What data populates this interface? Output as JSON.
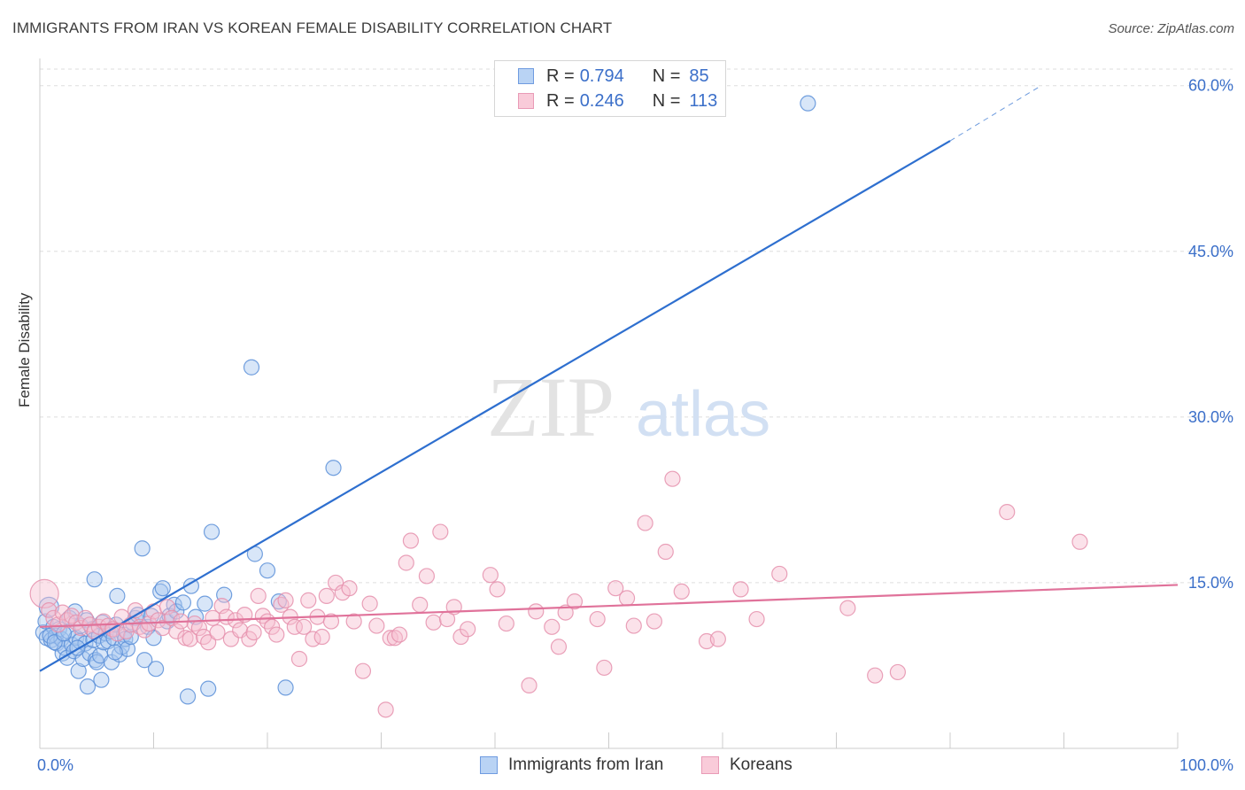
{
  "title": "IMMIGRANTS FROM IRAN VS KOREAN FEMALE DISABILITY CORRELATION CHART",
  "source": "Source: ZipAtlas.com",
  "watermark": {
    "zip": "ZIP",
    "atlas": "atlas"
  },
  "legend": {
    "series1": {
      "r_label": "R =",
      "r_value": "0.794",
      "n_label": "N =",
      "n_value": "85"
    },
    "series2": {
      "r_label": "R =",
      "r_value": "0.246",
      "n_label": "N =",
      "n_value": "113"
    }
  },
  "colors": {
    "iran_fill": "#a9c8f0",
    "iran_stroke": "#5a8fd8",
    "iran_line": "#2e6fcf",
    "korean_fill": "#f7bfd0",
    "korean_stroke": "#e590ad",
    "korean_line": "#e0729a",
    "axis_label": "#3b6fc9",
    "grid": "#dddddd"
  },
  "chart_data": {
    "type": "scatter",
    "title": "IMMIGRANTS FROM IRAN VS KOREAN FEMALE DISABILITY CORRELATION CHART",
    "xlabel": "",
    "ylabel": "Female Disability",
    "xlim": [
      0,
      100
    ],
    "ylim": [
      0,
      61.5
    ],
    "x_tick_labels": [
      "0.0%",
      "100.0%"
    ],
    "y_ticks": [
      15,
      30,
      45,
      60
    ],
    "y_tick_labels": [
      "15.0%",
      "30.0%",
      "45.0%",
      "60.0%"
    ],
    "legend_entries": [
      "Immigrants from Iran",
      "Koreans"
    ],
    "series": [
      {
        "name": "Immigrants from Iran",
        "r": 0.794,
        "n": 85,
        "trend": {
          "x0": 0,
          "y0": 7.0,
          "x1": 80,
          "y1": 55.0,
          "dash_to_x": 88,
          "dash_to_y": 60
        },
        "points": [
          [
            0.3,
            10.5
          ],
          [
            0.5,
            11.5
          ],
          [
            0.6,
            10.0
          ],
          [
            0.8,
            12.8
          ],
          [
            1.0,
            9.8
          ],
          [
            1.2,
            11.0
          ],
          [
            1.4,
            10.2
          ],
          [
            1.5,
            9.5
          ],
          [
            1.7,
            10.8
          ],
          [
            1.9,
            9.9
          ],
          [
            2.0,
            8.6
          ],
          [
            2.2,
            9.1
          ],
          [
            2.4,
            8.2
          ],
          [
            2.5,
            10.6
          ],
          [
            2.6,
            11.8
          ],
          [
            2.8,
            9.4
          ],
          [
            3.0,
            8.8
          ],
          [
            3.1,
            12.4
          ],
          [
            3.2,
            10.0
          ],
          [
            3.4,
            7.0
          ],
          [
            3.5,
            9.7
          ],
          [
            3.6,
            11.1
          ],
          [
            3.8,
            8.1
          ],
          [
            4.0,
            9.5
          ],
          [
            4.1,
            11.6
          ],
          [
            4.2,
            5.6
          ],
          [
            4.4,
            8.6
          ],
          [
            4.6,
            10.8
          ],
          [
            4.7,
            9.8
          ],
          [
            4.8,
            15.3
          ],
          [
            4.9,
            8.0
          ],
          [
            5.0,
            7.8
          ],
          [
            5.2,
            10.2
          ],
          [
            5.3,
            8.4
          ],
          [
            5.4,
            6.2
          ],
          [
            5.5,
            11.4
          ],
          [
            5.6,
            9.6
          ],
          [
            5.8,
            10.4
          ],
          [
            6.0,
            9.7
          ],
          [
            6.2,
            10.6
          ],
          [
            6.3,
            7.8
          ],
          [
            6.5,
            10.0
          ],
          [
            6.7,
            11.2
          ],
          [
            6.8,
            13.8
          ],
          [
            7.0,
            8.5
          ],
          [
            7.2,
            9.2
          ],
          [
            7.4,
            10.3
          ],
          [
            7.5,
            9.9
          ],
          [
            7.7,
            9.0
          ],
          [
            8.0,
            10.1
          ],
          [
            8.2,
            11.3
          ],
          [
            8.4,
            11.8
          ],
          [
            8.6,
            12.1
          ],
          [
            9.0,
            18.1
          ],
          [
            9.2,
            8.0
          ],
          [
            9.5,
            11.0
          ],
          [
            9.8,
            12.0
          ],
          [
            10.0,
            10.0
          ],
          [
            10.2,
            7.2
          ],
          [
            10.6,
            14.2
          ],
          [
            10.8,
            14.5
          ],
          [
            11.2,
            11.5
          ],
          [
            11.4,
            12.0
          ],
          [
            11.8,
            13.0
          ],
          [
            12.0,
            12.4
          ],
          [
            12.6,
            13.2
          ],
          [
            13.0,
            4.7
          ],
          [
            13.3,
            14.7
          ],
          [
            13.7,
            11.9
          ],
          [
            14.5,
            13.1
          ],
          [
            14.8,
            5.4
          ],
          [
            15.1,
            19.6
          ],
          [
            16.2,
            13.9
          ],
          [
            18.6,
            34.5
          ],
          [
            18.9,
            17.6
          ],
          [
            20.0,
            16.1
          ],
          [
            21.0,
            13.3
          ],
          [
            21.6,
            5.5
          ],
          [
            25.8,
            25.4
          ],
          [
            67.5,
            58.4
          ],
          [
            0.9,
            10.2
          ],
          [
            1.3,
            9.6
          ],
          [
            2.1,
            10.4
          ],
          [
            3.3,
            9.1
          ],
          [
            6.6,
            8.7
          ]
        ]
      },
      {
        "name": "Koreans",
        "r": 0.246,
        "n": 113,
        "trend": {
          "x0": 0,
          "y0": 11.0,
          "x1": 100,
          "y1": 14.8
        },
        "points": [
          [
            0.4,
            14.0
          ],
          [
            0.8,
            12.5
          ],
          [
            1.2,
            11.8
          ],
          [
            1.6,
            11.2
          ],
          [
            2.0,
            12.3
          ],
          [
            2.4,
            11.6
          ],
          [
            2.8,
            12.0
          ],
          [
            3.2,
            11.4
          ],
          [
            3.6,
            10.9
          ],
          [
            4.0,
            11.8
          ],
          [
            4.4,
            11.2
          ],
          [
            4.8,
            10.6
          ],
          [
            5.2,
            11.0
          ],
          [
            5.6,
            11.5
          ],
          [
            6.0,
            11.1
          ],
          [
            6.4,
            10.8
          ],
          [
            6.8,
            10.4
          ],
          [
            7.2,
            11.9
          ],
          [
            7.6,
            10.6
          ],
          [
            8.0,
            11.2
          ],
          [
            8.4,
            12.5
          ],
          [
            8.8,
            11.0
          ],
          [
            9.2,
            10.7
          ],
          [
            9.6,
            11.3
          ],
          [
            10.0,
            12.4
          ],
          [
            10.4,
            11.6
          ],
          [
            10.8,
            10.9
          ],
          [
            11.2,
            12.8
          ],
          [
            11.6,
            11.8
          ],
          [
            12.0,
            10.6
          ],
          [
            12.4,
            11.5
          ],
          [
            12.8,
            10.0
          ],
          [
            13.2,
            9.9
          ],
          [
            13.6,
            11.3
          ],
          [
            14.0,
            10.9
          ],
          [
            14.4,
            10.1
          ],
          [
            14.8,
            9.6
          ],
          [
            15.2,
            11.8
          ],
          [
            15.6,
            10.5
          ],
          [
            16.0,
            12.9
          ],
          [
            16.4,
            11.9
          ],
          [
            16.8,
            9.9
          ],
          [
            17.2,
            11.6
          ],
          [
            17.6,
            10.7
          ],
          [
            18.0,
            12.1
          ],
          [
            18.4,
            9.9
          ],
          [
            18.8,
            10.5
          ],
          [
            19.2,
            13.8
          ],
          [
            19.6,
            12.0
          ],
          [
            20.0,
            11.5
          ],
          [
            20.4,
            11.0
          ],
          [
            20.8,
            10.3
          ],
          [
            21.2,
            13.0
          ],
          [
            21.6,
            13.4
          ],
          [
            22.0,
            11.9
          ],
          [
            22.4,
            11.0
          ],
          [
            22.8,
            8.1
          ],
          [
            23.2,
            11.0
          ],
          [
            23.6,
            13.4
          ],
          [
            24.0,
            9.9
          ],
          [
            24.4,
            11.9
          ],
          [
            24.8,
            10.1
          ],
          [
            25.2,
            13.8
          ],
          [
            25.6,
            11.5
          ],
          [
            26.0,
            15.0
          ],
          [
            26.6,
            14.1
          ],
          [
            27.2,
            14.5
          ],
          [
            27.6,
            11.5
          ],
          [
            28.4,
            7.0
          ],
          [
            29.0,
            13.1
          ],
          [
            29.6,
            11.1
          ],
          [
            30.4,
            3.5
          ],
          [
            30.8,
            10.0
          ],
          [
            31.2,
            10.0
          ],
          [
            31.6,
            10.3
          ],
          [
            32.2,
            16.8
          ],
          [
            32.6,
            18.8
          ],
          [
            33.4,
            13.0
          ],
          [
            34.0,
            15.6
          ],
          [
            34.6,
            11.4
          ],
          [
            35.2,
            19.6
          ],
          [
            35.8,
            11.7
          ],
          [
            36.4,
            12.8
          ],
          [
            37.0,
            10.1
          ],
          [
            37.6,
            10.8
          ],
          [
            39.6,
            15.7
          ],
          [
            40.2,
            14.4
          ],
          [
            41.0,
            11.3
          ],
          [
            43.0,
            5.7
          ],
          [
            43.6,
            12.4
          ],
          [
            45.0,
            11.0
          ],
          [
            45.6,
            9.2
          ],
          [
            46.2,
            12.3
          ],
          [
            47.0,
            13.3
          ],
          [
            49.0,
            11.7
          ],
          [
            49.6,
            7.3
          ],
          [
            50.6,
            14.5
          ],
          [
            51.6,
            13.6
          ],
          [
            52.2,
            11.1
          ],
          [
            53.2,
            20.4
          ],
          [
            54.0,
            11.5
          ],
          [
            55.0,
            17.8
          ],
          [
            55.6,
            24.4
          ],
          [
            56.4,
            14.2
          ],
          [
            58.6,
            9.7
          ],
          [
            59.6,
            9.9
          ],
          [
            61.6,
            14.4
          ],
          [
            63.0,
            11.7
          ],
          [
            65.0,
            15.8
          ],
          [
            71.0,
            12.7
          ],
          [
            73.4,
            6.6
          ],
          [
            75.4,
            6.9
          ],
          [
            85.0,
            21.4
          ],
          [
            91.4,
            18.7
          ]
        ]
      }
    ]
  }
}
